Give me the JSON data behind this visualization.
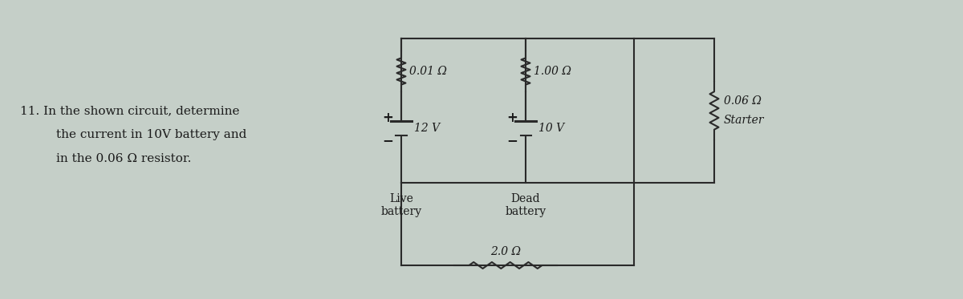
{
  "bg_color_left": "#c8d4d0",
  "bg_color_right": "#c8c8b8",
  "circuit_bg": "#e8e8d8",
  "problem_text_line1": "11. In the shown circuit, determine",
  "problem_text_line2": "    the current in 10V battery and",
  "problem_text_line3": "    in the 0.06 Ω resistor.",
  "resistor_01_label": "0.01 Ω",
  "resistor_10_label": "1.00 Ω",
  "resistor_006_label": "0.06 Ω",
  "starter_label": "Starter",
  "battery1_label": "12 V",
  "battery2_label": "10 V",
  "live_label": "Live\nbattery",
  "dead_label": "Dead\nbattery",
  "resistor_20_label": "2.0 Ω",
  "line_color": "#2a2a2a",
  "text_color": "#1a1a1a",
  "font_size": 10,
  "lw": 1.5
}
